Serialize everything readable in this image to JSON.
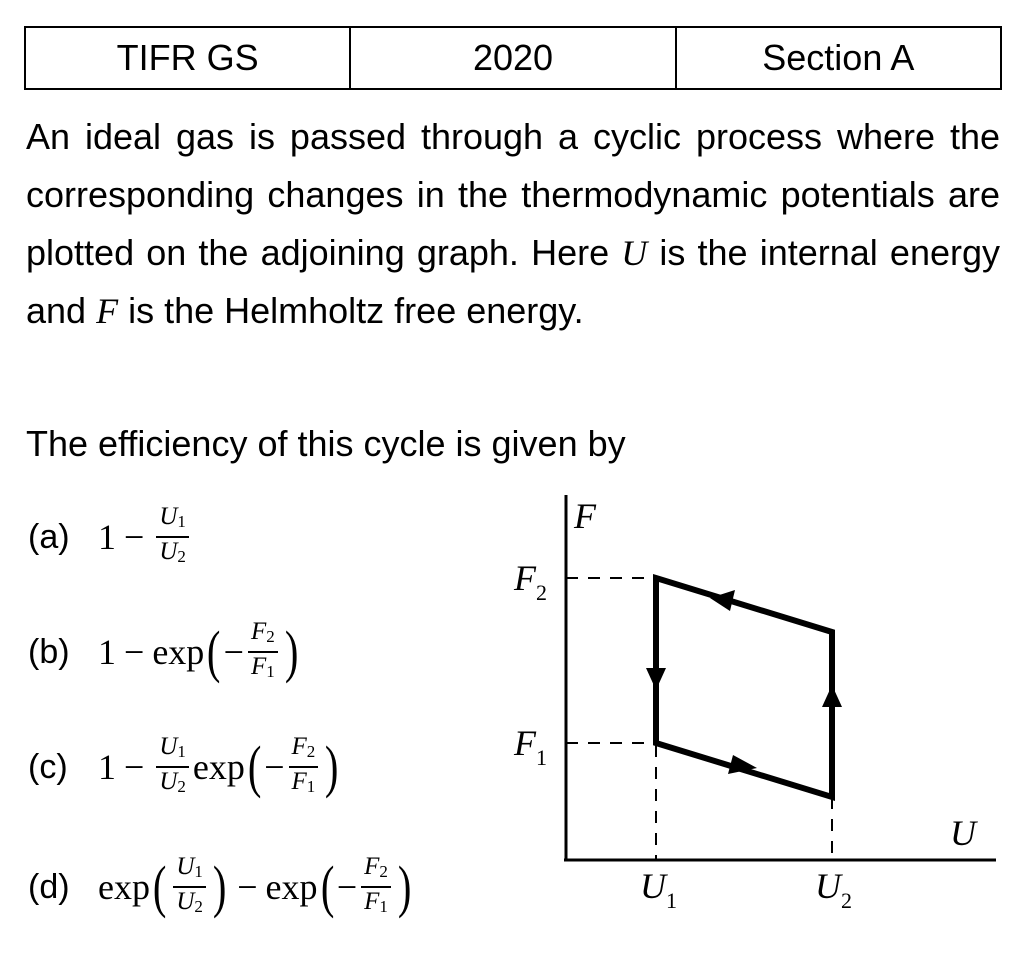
{
  "header": {
    "exam": "TIFR GS",
    "year": "2020",
    "section": "Section A"
  },
  "question": {
    "text_1": "An ideal gas is passed through a cyclic process where the corresponding changes in the thermodynamic potentials are plotted on the adjoining graph. Here ",
    "var_u": "U",
    "text_2": " is the internal energy and ",
    "var_f": "F",
    "text_3": " is the Helmholtz free energy.",
    "prompt": "The efficiency of this cycle is given by"
  },
  "options": [
    {
      "label": "(a)",
      "expression": "1 − U1/U2"
    },
    {
      "label": "(b)",
      "expression": "1 − exp(−F2/F1)"
    },
    {
      "label": "(c)",
      "expression": "1 − (U1/U2) exp(−F2/F1)"
    },
    {
      "label": "(d)",
      "expression": "exp(U1/U2) − exp(−F2/F1)"
    }
  ],
  "math_symbols": {
    "one": "1",
    "minus": "−",
    "exp": "exp",
    "U": "U",
    "F": "F",
    "sub1": "1",
    "sub2": "2",
    "lparen": "(",
    "rparen": ")"
  },
  "graph": {
    "y_axis_label": "F",
    "x_axis_label": "U",
    "y_tick_F2": "F2",
    "y_tick_F1": "F1",
    "x_tick_U1": "U1",
    "x_tick_U2": "U2",
    "cycle_direction": "clockwise: U1→U2 lower edge, U2 upward, U2→U1 upper edge, U1 downward"
  }
}
